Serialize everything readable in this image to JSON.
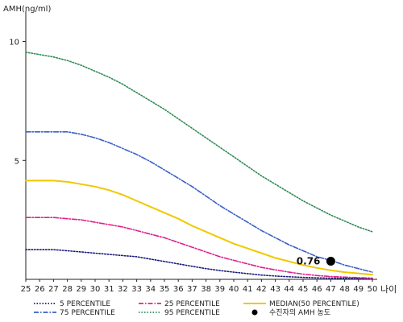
{
  "chart_data": {
    "type": "line",
    "ylabel": "AMH(ng/ml)",
    "xlabel": "나이",
    "xlim": [
      25,
      50
    ],
    "ylim": [
      0,
      11
    ],
    "yticks": [
      5,
      10
    ],
    "x": [
      25,
      26,
      27,
      28,
      29,
      30,
      31,
      32,
      33,
      34,
      35,
      36,
      37,
      38,
      39,
      40,
      41,
      42,
      43,
      44,
      45,
      46,
      47,
      48,
      49,
      50
    ],
    "series": [
      {
        "name": "5 PERCENTILE",
        "color": "#1a1a7a",
        "dash": "dotted",
        "values": [
          1.25,
          1.25,
          1.25,
          1.2,
          1.15,
          1.1,
          1.05,
          1.0,
          0.95,
          0.85,
          0.75,
          0.65,
          0.55,
          0.45,
          0.37,
          0.3,
          0.24,
          0.18,
          0.14,
          0.11,
          0.08,
          0.06,
          0.05,
          0.04,
          0.03,
          0.02
        ]
      },
      {
        "name": "25 PERCENTILE",
        "color": "#e0208c",
        "dash": "dashdot",
        "values": [
          2.6,
          2.6,
          2.6,
          2.55,
          2.5,
          2.4,
          2.3,
          2.2,
          2.05,
          1.9,
          1.75,
          1.55,
          1.35,
          1.15,
          0.95,
          0.8,
          0.65,
          0.5,
          0.4,
          0.3,
          0.22,
          0.16,
          0.12,
          0.09,
          0.07,
          0.05
        ]
      },
      {
        "name": "MEDIAN(50 PERCENTILE)",
        "color": "#f0c800",
        "dash": "solid",
        "values": [
          4.15,
          4.15,
          4.15,
          4.1,
          4.0,
          3.9,
          3.75,
          3.55,
          3.3,
          3.05,
          2.8,
          2.55,
          2.25,
          2.0,
          1.75,
          1.5,
          1.3,
          1.1,
          0.9,
          0.75,
          0.6,
          0.48,
          0.38,
          0.3,
          0.25,
          0.2
        ]
      },
      {
        "name": "75 PERCENTILE",
        "color": "#3a5fc8",
        "dash": "dashdot",
        "values": [
          6.2,
          6.2,
          6.2,
          6.2,
          6.1,
          5.95,
          5.75,
          5.5,
          5.25,
          4.95,
          4.6,
          4.25,
          3.9,
          3.5,
          3.1,
          2.75,
          2.4,
          2.05,
          1.75,
          1.45,
          1.2,
          0.95,
          0.8,
          0.6,
          0.45,
          0.3
        ]
      },
      {
        "name": "95 PERCENTILE",
        "color": "#2e8b57",
        "dash": "dotted",
        "values": [
          9.55,
          9.45,
          9.35,
          9.2,
          9.0,
          8.75,
          8.5,
          8.2,
          7.85,
          7.5,
          7.15,
          6.75,
          6.35,
          5.95,
          5.55,
          5.15,
          4.75,
          4.35,
          4.0,
          3.65,
          3.3,
          3.0,
          2.7,
          2.45,
          2.2,
          2.0
        ]
      }
    ],
    "marker": {
      "name": "수진자의 AMH 농도",
      "x": 47,
      "y": 0.76,
      "label": "0.76",
      "color": "#000000"
    },
    "legend": {
      "placement": "bottom",
      "entries": [
        {
          "name": "5 PERCENTILE",
          "color": "#1a1a7a",
          "dash": "dotted"
        },
        {
          "name": "25 PERCENTILE",
          "color": "#e0208c",
          "dash": "dashdot"
        },
        {
          "name": "MEDIAN(50 PERCENTILE)",
          "color": "#f0c800",
          "dash": "solid"
        },
        {
          "name": "75 PERCENTILE",
          "color": "#3a5fc8",
          "dash": "dashdot"
        },
        {
          "name": "95 PERCENTILE",
          "color": "#2e8b57",
          "dash": "dotted"
        },
        {
          "name": "수진자의 AMH 농도",
          "color": "#000000",
          "dash": "marker"
        }
      ]
    },
    "grid": false
  }
}
